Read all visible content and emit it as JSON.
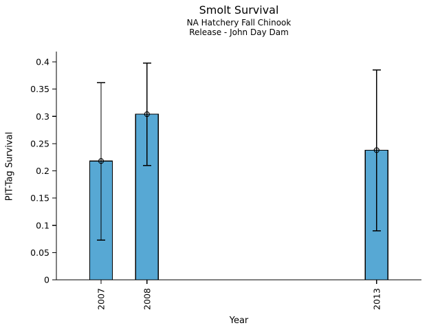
{
  "figure": {
    "background": "#ffffff"
  },
  "chart_data": {
    "type": "bar",
    "title": "Smolt Survival",
    "subtitle": [
      "NA Hatchery Fall Chinook",
      "Release - John Day Dam"
    ],
    "xlabel": "Year",
    "ylabel": "PIT-Tag Survival",
    "categories": [
      "2007",
      "2008",
      "2013"
    ],
    "years": [
      2007,
      2008,
      2013
    ],
    "values": [
      0.218,
      0.304,
      0.238
    ],
    "error_low": [
      0.073,
      0.21,
      0.09
    ],
    "error_high": [
      0.362,
      0.398,
      0.385
    ],
    "ylim": [
      0,
      0.4
    ],
    "yticks": [
      0,
      0.05,
      0.1,
      0.15,
      0.2,
      0.25,
      0.3,
      0.35,
      0.4
    ],
    "ytick_labels": [
      "0",
      "0.05",
      "0.1",
      "0.15",
      "0.2",
      "0.25",
      "0.3",
      "0.35",
      "0.4"
    ],
    "x_axis_type": "linear-year",
    "grid": false,
    "bar_color": "#57A8D4",
    "bar_edge_color": "#000000",
    "error_color": "#000000",
    "marker": "circle-plus",
    "marker_color": "#000000"
  }
}
